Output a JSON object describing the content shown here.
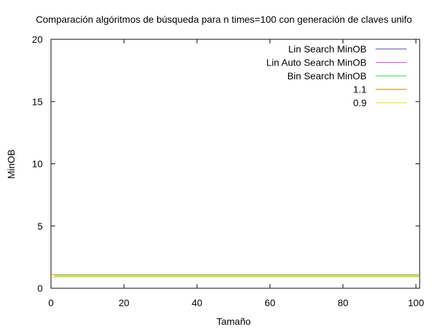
{
  "chart_data": {
    "type": "line",
    "title": "Comparación algóritmos de búsqueda para n times=100 con generación de claves unifo",
    "xlabel": "Tamaño",
    "ylabel": "MinOB",
    "xlim": [
      0,
      101
    ],
    "ylim": [
      0,
      20
    ],
    "xticks": [
      0,
      20,
      40,
      60,
      80,
      100
    ],
    "yticks": [
      0,
      5,
      10,
      15,
      20
    ],
    "grid": false,
    "legend_position": "top-right",
    "series": [
      {
        "name": "Lin Search MinOB",
        "color": "#5b3fa0",
        "x": [
          1,
          101
        ],
        "y": [
          1,
          1
        ]
      },
      {
        "name": "Lin Auto Search MinOB",
        "color": "#e040e0",
        "x": [
          1,
          101
        ],
        "y": [
          1,
          1
        ]
      },
      {
        "name": "Bin Search MinOB",
        "color": "#2ecc40",
        "x": [
          1,
          101
        ],
        "y": [
          1,
          1
        ]
      },
      {
        "name": "1.1",
        "color": "#d08c00",
        "x": [
          0,
          101
        ],
        "y": [
          1.1,
          1.1
        ]
      },
      {
        "name": "0.9",
        "color": "#e6d800",
        "x": [
          0,
          101
        ],
        "y": [
          0.9,
          0.9
        ]
      }
    ]
  }
}
